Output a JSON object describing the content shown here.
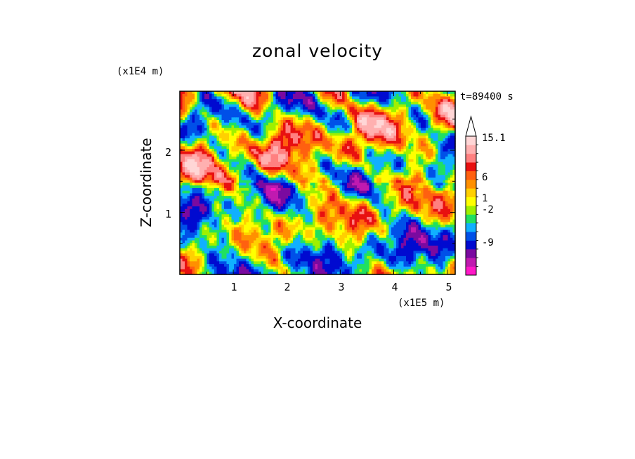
{
  "chart_data": {
    "type": "heatmap",
    "title": "zonal velocity",
    "xlabel": "X-coordinate",
    "ylabel": "Z-coordinate",
    "x_scale_label": "(x1E5 m)",
    "y_scale_label": "(x1E4 m)",
    "time_label": "t=89400 s",
    "xlim": [
      0,
      5.15
    ],
    "ylim": [
      0,
      2.95
    ],
    "x_ticks": [
      "1",
      "2",
      "3",
      "4",
      "5"
    ],
    "y_ticks": [
      "1",
      "2"
    ],
    "colorbar_ticks": [
      "15.1",
      "6",
      "1",
      "-2",
      "-9"
    ],
    "colorbar_colors": [
      "#ff18c8",
      "#c01ab0",
      "#7a0aa0",
      "#000ad0",
      "#0050e8",
      "#10b0ff",
      "#20e060",
      "#a0f000",
      "#ffff00",
      "#ffd000",
      "#ff9000",
      "#ff6010",
      "#e81010",
      "#ff8080",
      "#ffb0b0",
      "#ffd6d6"
    ],
    "colormap": "rainbow, magenta (negative) to red/pink (positive)"
  }
}
